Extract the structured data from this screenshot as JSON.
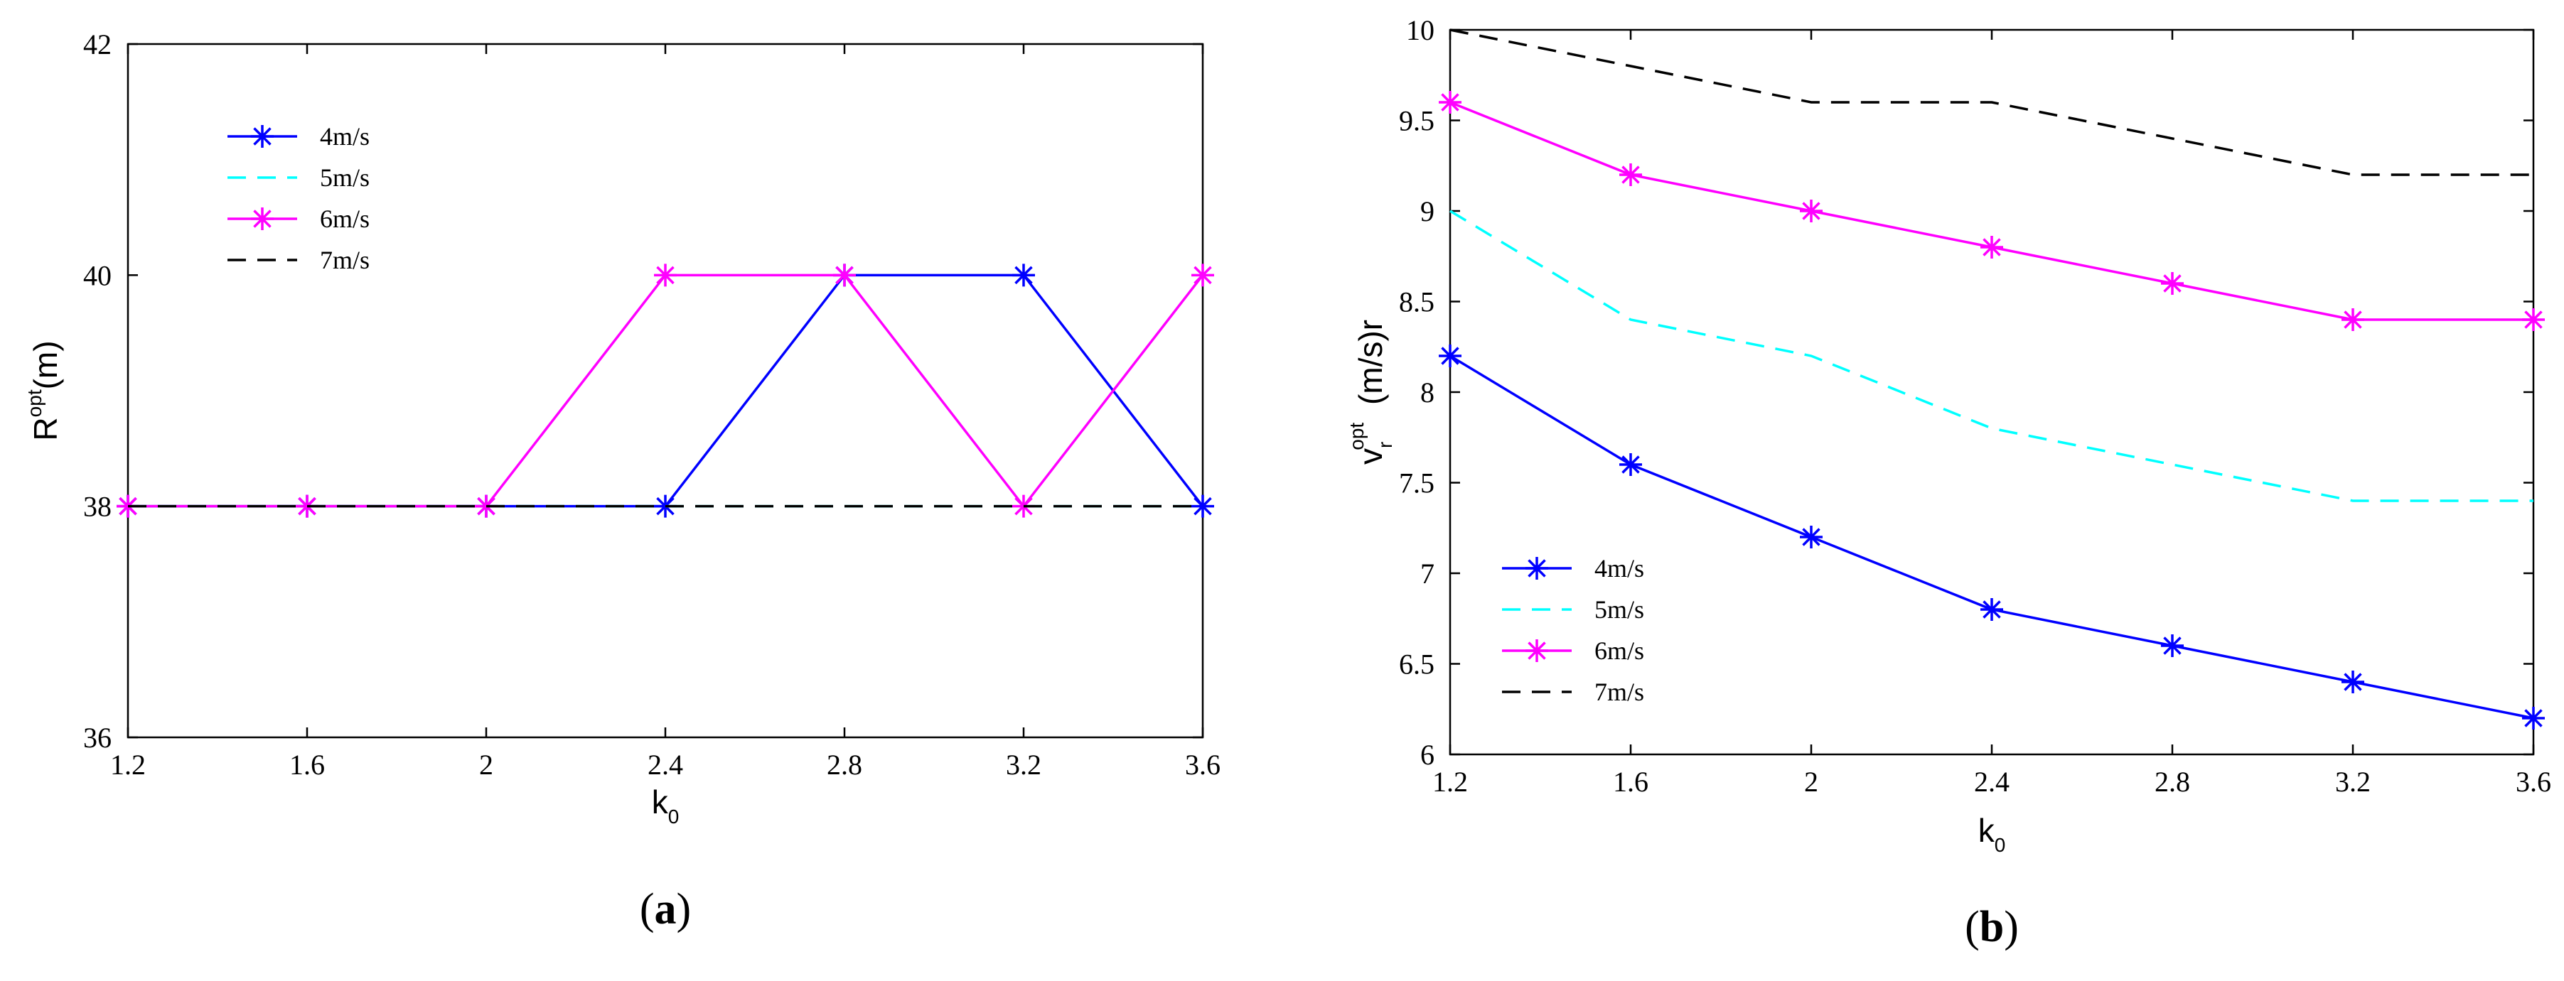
{
  "chart_data": [
    {
      "type": "line",
      "panel": "(a)",
      "caption_letter": "a",
      "ylabel": "R^opt(m)",
      "ylabel_base": "R",
      "ylabel_sup": "opt",
      "ylabel_rest": "(m)",
      "xlabel_base": "k",
      "xlabel_sub": "0",
      "x": [
        1.2,
        1.6,
        2,
        2.4,
        2.8,
        3.2,
        3.6
      ],
      "x_tick_labels": [
        "1.2",
        "1.6",
        "2",
        "2.4",
        "2.8",
        "3.2",
        "3.6"
      ],
      "xlim": [
        1.2,
        3.6
      ],
      "ylim": [
        36,
        42
      ],
      "y_ticks": [
        36,
        38,
        40,
        42
      ],
      "y_tick_labels": [
        "36",
        "38",
        "40",
        "42"
      ],
      "legend_position": "top-left",
      "series": [
        {
          "name": "4m/s",
          "color": "#0000ff",
          "style": "solid",
          "marker": "asterisk",
          "values": [
            38,
            38,
            38,
            38,
            40,
            40,
            38
          ]
        },
        {
          "name": "5m/s",
          "color": "#00ffff",
          "style": "dashed",
          "marker": "none",
          "values": [
            38,
            38,
            38,
            38,
            38,
            38,
            38
          ]
        },
        {
          "name": "6m/s",
          "color": "#ff00ff",
          "style": "solid",
          "marker": "asterisk",
          "values": [
            38,
            38,
            38,
            40,
            40,
            38,
            40
          ]
        },
        {
          "name": "7m/s",
          "color": "#000000",
          "style": "dashed",
          "marker": "none",
          "values": [
            38,
            38,
            38,
            38,
            38,
            38,
            38
          ]
        }
      ]
    },
    {
      "type": "line",
      "panel": "(b)",
      "caption_letter": "b",
      "ylabel": "v_r^opt (m/s)r",
      "ylabel_base": "v",
      "ylabel_sub": "r",
      "ylabel_sup": "opt",
      "ylabel_rest": "(m/s)r",
      "xlabel_base": "k",
      "xlabel_sub": "0",
      "x": [
        1.2,
        1.6,
        2,
        2.4,
        2.8,
        3.2,
        3.6
      ],
      "x_tick_labels": [
        "1.2",
        "1.6",
        "2",
        "2.4",
        "2.8",
        "3.2",
        "3.6"
      ],
      "xlim": [
        1.2,
        3.6
      ],
      "ylim": [
        6,
        10
      ],
      "y_ticks": [
        6,
        6.5,
        7,
        7.5,
        8,
        8.5,
        9,
        9.5,
        10
      ],
      "y_tick_labels": [
        "6",
        "6.5",
        "7",
        "7.5",
        "8",
        "8.5",
        "9",
        "9.5",
        "10"
      ],
      "legend_position": "bottom-left",
      "series": [
        {
          "name": "4m/s",
          "color": "#0000ff",
          "style": "solid",
          "marker": "asterisk",
          "values": [
            8.2,
            7.6,
            7.2,
            6.8,
            6.6,
            6.4,
            6.2
          ]
        },
        {
          "name": "5m/s",
          "color": "#00ffff",
          "style": "dashed",
          "marker": "none",
          "values": [
            9.0,
            8.4,
            8.2,
            7.8,
            7.6,
            7.4,
            7.4
          ]
        },
        {
          "name": "6m/s",
          "color": "#ff00ff",
          "style": "solid",
          "marker": "asterisk",
          "values": [
            9.6,
            9.2,
            9.0,
            8.8,
            8.6,
            8.4,
            8.4
          ]
        },
        {
          "name": "7m/s",
          "color": "#000000",
          "style": "dashed",
          "marker": "none",
          "values": [
            10.0,
            9.8,
            9.6,
            9.6,
            9.4,
            9.2,
            9.2
          ]
        }
      ]
    }
  ]
}
